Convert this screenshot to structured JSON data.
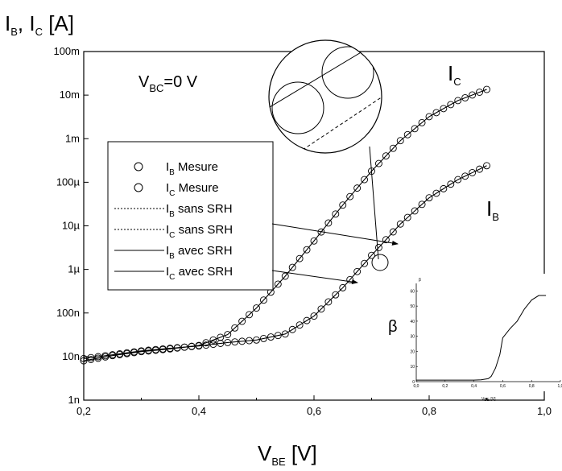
{
  "chart_data": [
    {
      "type": "scatter",
      "title": "",
      "ylabel": {
        "main": "I",
        "sub1": "B",
        "mid": ", I",
        "sub2": "C",
        "unit": " [A]"
      },
      "xlabel": {
        "main": "V",
        "sub": "BE",
        "unit": " [V]"
      },
      "xlim": [
        0.2,
        1.0
      ],
      "ylim": [
        1e-09,
        0.1
      ],
      "yscale": "log",
      "x_ticks": [
        {
          "v": 0.2,
          "label": "0,2"
        },
        {
          "v": 0.4,
          "label": "0,4"
        },
        {
          "v": 0.6,
          "label": "0,6"
        },
        {
          "v": 0.8,
          "label": "0,8"
        },
        {
          "v": 1.0,
          "label": "1,0"
        }
      ],
      "y_ticks": [
        {
          "v": 1e-09,
          "label": "1n"
        },
        {
          "v": 1e-08,
          "label": "10n"
        },
        {
          "v": 1e-07,
          "label": "100n"
        },
        {
          "v": 1e-06,
          "label": "1µ"
        },
        {
          "v": 1e-05,
          "label": "10µ"
        },
        {
          "v": 0.0001,
          "label": "100µ"
        },
        {
          "v": 0.001,
          "label": "1m"
        },
        {
          "v": 0.01,
          "label": "10m"
        },
        {
          "v": 0.1,
          "label": "100m"
        }
      ],
      "annotation": {
        "main": "V",
        "sub": "BC",
        "rest": "=0 V"
      },
      "curve_labels": [
        {
          "main": "I",
          "sub": "C"
        },
        {
          "main": "I",
          "sub": "B"
        }
      ],
      "legend": {
        "placement": "center-left",
        "entries": [
          {
            "main": "I",
            "sub": "B",
            "rest": " Mesure",
            "style": "circle"
          },
          {
            "main": "I",
            "sub": "C",
            "rest": " Mesure",
            "style": "circle"
          },
          {
            "main": "I",
            "sub": "B",
            "rest": " sans SRH",
            "style": "dotted"
          },
          {
            "main": "I",
            "sub": "C",
            "rest": " sans SRH",
            "style": "dotted"
          },
          {
            "main": "I",
            "sub": "B",
            "rest": " avec SRH",
            "style": "solid"
          },
          {
            "main": "I",
            "sub": "C",
            "rest": " avec SRH",
            "style": "solid"
          }
        ]
      },
      "series": [
        {
          "name": "I_C",
          "x": [
            0.2,
            0.25,
            0.3,
            0.35,
            0.4,
            0.45,
            0.5,
            0.55,
            0.6,
            0.65,
            0.7,
            0.75,
            0.8,
            0.85,
            0.9
          ],
          "y": [
            8e-09,
            1.05e-08,
            1.3e-08,
            1.5e-08,
            1.8e-08,
            3.2e-08,
            1.3e-07,
            7e-07,
            4.5e-06,
            3e-05,
            0.00018,
            0.0009,
            0.0032,
            0.0075,
            0.0135
          ]
        },
        {
          "name": "I_B",
          "x": [
            0.2,
            0.25,
            0.3,
            0.35,
            0.4,
            0.45,
            0.5,
            0.55,
            0.6,
            0.65,
            0.7,
            0.75,
            0.8,
            0.85,
            0.9
          ],
          "y": [
            9e-09,
            1.1e-08,
            1.35e-08,
            1.55e-08,
            1.75e-08,
            2.1e-08,
            2.4e-08,
            3.3e-08,
            8.5e-08,
            3.8e-07,
            2.1e-06,
            1.1e-05,
            4.4e-05,
            0.000115,
            0.00024
          ]
        }
      ]
    },
    {
      "type": "line",
      "title": "",
      "ylabel": "β",
      "ylabel_small": "β",
      "xlabel": {
        "main": "V",
        "sub": "BE",
        "unit": " [V]"
      },
      "xlim": [
        0.0,
        1.0
      ],
      "ylim": [
        0,
        65
      ],
      "x_ticks": [
        {
          "v": 0.0,
          "label": "0,0"
        },
        {
          "v": 0.2,
          "label": "0,2"
        },
        {
          "v": 0.4,
          "label": "0,4"
        },
        {
          "v": 0.6,
          "label": "0,6"
        },
        {
          "v": 0.8,
          "label": "0,8"
        },
        {
          "v": 1.0,
          "label": "1,0"
        }
      ],
      "y_ticks": [
        {
          "v": 0,
          "label": "0"
        },
        {
          "v": 10,
          "label": "10"
        },
        {
          "v": 20,
          "label": "20"
        },
        {
          "v": 30,
          "label": "30"
        },
        {
          "v": 40,
          "label": "40"
        },
        {
          "v": 50,
          "label": "50"
        },
        {
          "v": 60,
          "label": "60"
        }
      ],
      "series": [
        {
          "name": "",
          "x": [
            0.0,
            0.1,
            0.2,
            0.3,
            0.4,
            0.45,
            0.5,
            0.52,
            0.55,
            0.58,
            0.6,
            0.65,
            0.7,
            0.75,
            0.8,
            0.85,
            0.88,
            0.9
          ],
          "y": [
            1,
            1,
            1,
            1,
            1,
            1.2,
            2,
            3.5,
            9,
            18,
            29,
            35,
            40,
            48,
            54,
            57,
            57,
            57
          ]
        }
      ]
    }
  ]
}
